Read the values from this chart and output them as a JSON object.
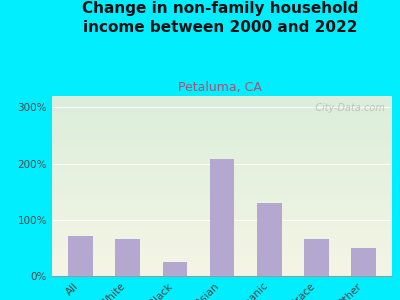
{
  "title": "Change in non-family household\nincome between 2000 and 2022",
  "subtitle": "Petaluma, CA",
  "categories": [
    "All",
    "White",
    "Black",
    "Asian",
    "Hispanic",
    "Multirace",
    "Other"
  ],
  "values": [
    72,
    65,
    25,
    208,
    130,
    65,
    50
  ],
  "bar_color": "#b5a8d0",
  "title_fontsize": 11,
  "subtitle_fontsize": 9,
  "subtitle_color": "#b05070",
  "title_color": "#111111",
  "bg_outer": "#00eeff",
  "yticks": [
    0,
    100,
    200,
    300
  ],
  "ylim": [
    0,
    320
  ],
  "watermark": "  City-Data.com"
}
